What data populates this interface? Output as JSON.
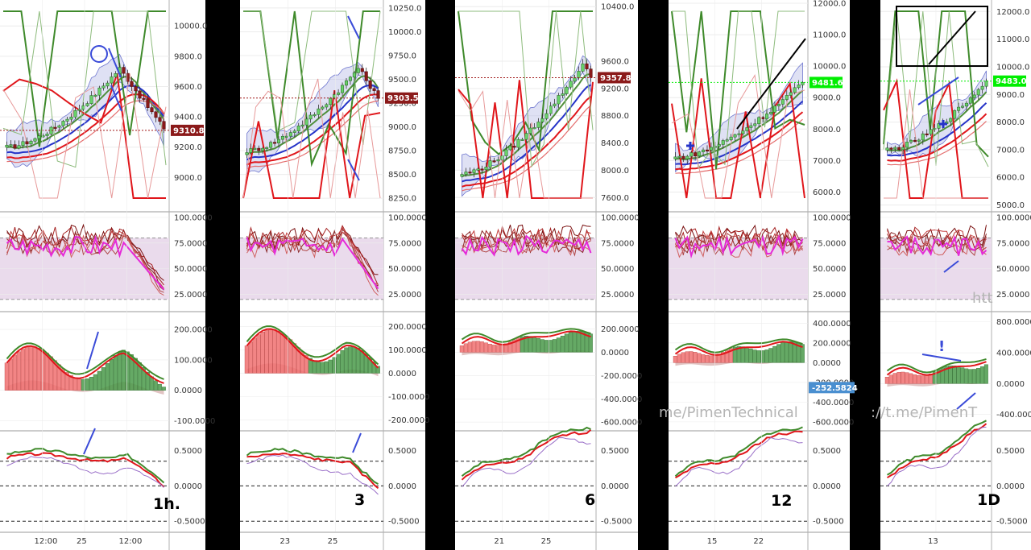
{
  "colors": {
    "background": "#000000",
    "panel": "#ffffff",
    "grid": "#ececec",
    "bull": "#6ad36a",
    "bear": "#8b1a1a",
    "hist_pos": "#4a9a4a",
    "hist_neg": "#f07070",
    "signal_red": "#e0161b",
    "signal_green": "#3f8a2b",
    "ribbon_blue": "#2533c8",
    "band_fill": "#b9bde6",
    "stoch_zone": "#eadbec",
    "stoch_line": "#e52ad8",
    "annotation": "#3a4bd8",
    "current_green": "#00ee00"
  },
  "chart_data": [
    {
      "type": "line",
      "timeframe": "1h.",
      "x_ticks": [
        "12:00",
        "25",
        "12:00"
      ],
      "price_axis": {
        "ylim": [
          8800,
          10150
        ],
        "ticks": [
          "10000.0",
          "9800.0",
          "9600.0",
          "9400.0",
          "9200.0",
          "9000.0"
        ],
        "current": "9310.8",
        "current_value": 9310.8,
        "badge_color": "#8b1a1a"
      },
      "candles": {
        "start": 9200,
        "end": 9320,
        "peak": 9720,
        "peak_frac": 0.72,
        "decline": true
      },
      "stoch": {
        "ticks": [
          "100.0000",
          "75.0000",
          "50.0000",
          "25.0000"
        ],
        "upper": 80,
        "lower": 20
      },
      "macd": {
        "ylim": [
          -120,
          240
        ],
        "ticks": [
          "200.0000",
          "100.0000",
          "0.0000",
          "-100.0000"
        ]
      },
      "osc": {
        "ylim": [
          -0.6,
          0.7
        ],
        "ticks": [
          "0.5000",
          "0.0000",
          "-0.5000"
        ],
        "levels": [
          0.35,
          0,
          -0.5
        ]
      }
    },
    {
      "type": "line",
      "timeframe": "3",
      "x_ticks": [
        "23",
        "25"
      ],
      "price_axis": {
        "ylim": [
          8150,
          10300
        ],
        "ticks": [
          "10250.0",
          "10000.0",
          "9750.0",
          "9500.0",
          "9250.0",
          "9000.0",
          "8750.0",
          "8500.0",
          "8250.0"
        ],
        "current": "9303.5",
        "current_value": 9303.5,
        "badge_color": "#8b1a1a"
      },
      "candles": {
        "start": 8750,
        "end": 9300,
        "peak": 9620,
        "peak_frac": 0.85,
        "decline": true
      },
      "stoch": {
        "ticks": [
          "100.0000",
          "75.0000",
          "50.0000",
          "25.0000"
        ],
        "upper": 80,
        "lower": 20
      },
      "macd": {
        "ylim": [
          -230,
          240
        ],
        "ticks": [
          "200.0000",
          "100.0000",
          "0.0000",
          "-100.0000",
          "-200.0000"
        ]
      },
      "osc": {
        "ylim": [
          -0.6,
          0.7
        ],
        "ticks": [
          "0.5000",
          "0.0000",
          "-0.5000"
        ],
        "levels": [
          0.35,
          0,
          -0.5
        ]
      }
    },
    {
      "type": "line",
      "timeframe": "6",
      "x_ticks": [
        "21",
        "25"
      ],
      "price_axis": {
        "ylim": [
          7450,
          10450
        ],
        "ticks": [
          "10400.0",
          "9600.0",
          "9200.0",
          "8800.0",
          "8400.0",
          "8000.0",
          "7600.0"
        ],
        "current": "9357.8",
        "current_value": 9357.8,
        "badge_color": "#8b1a1a"
      },
      "candles": {
        "start": 7950,
        "end": 9360,
        "peak": 9550,
        "peak_frac": 0.93,
        "decline": false
      },
      "stoch": {
        "ticks": [
          "100.0000",
          "75.0000",
          "50.0000",
          "25.0000"
        ],
        "upper": 80,
        "lower": 20
      },
      "macd": {
        "ylim": [
          -640,
          300
        ],
        "ticks": [
          "200.0000",
          "0.0000",
          "-200.0000",
          "-400.0000",
          "-600.0000"
        ]
      },
      "osc": {
        "ylim": [
          -0.6,
          0.7
        ],
        "ticks": [
          "0.5000",
          "0.0000",
          "-0.5000"
        ],
        "levels": [
          0.35,
          0,
          -0.5
        ]
      }
    },
    {
      "type": "line",
      "timeframe": "12",
      "x_ticks": [
        "15",
        "22"
      ],
      "price_axis": {
        "ylim": [
          5500,
          12000
        ],
        "ticks": [
          "12000.0",
          "11000.0",
          "10000.0",
          "9000.0",
          "8000.0",
          "7000.0",
          "6000.0"
        ],
        "current": "9481.6",
        "current_value": 9481.6,
        "badge_color": "#00ee00"
      },
      "candles": {
        "start": 7100,
        "end": 9480,
        "peak": 9480,
        "peak_frac": 1.0,
        "decline": false
      },
      "stoch": {
        "ticks": [
          "100.0000",
          "75.0000",
          "50.0000",
          "25.0000"
        ],
        "upper": 80,
        "lower": 20
      },
      "macd": {
        "ylim": [
          -650,
          460
        ],
        "ticks": [
          "400.0000",
          "200.0000",
          "0.0000",
          "-200.0000",
          "-400.0000",
          "-600.0000"
        ],
        "current": "-252.5824",
        "current_value": -252.58
      },
      "osc": {
        "ylim": [
          -0.6,
          0.7
        ],
        "ticks": [
          "0.5000",
          "0.0000",
          "-0.5000"
        ],
        "levels": [
          0.35,
          0,
          -0.5
        ]
      },
      "watermark": "me/PimenTechnical"
    },
    {
      "type": "line",
      "timeframe": "1D",
      "x_ticks": [
        "13"
      ],
      "price_axis": {
        "ylim": [
          4900,
          12300
        ],
        "ticks": [
          "12000.0",
          "11000.0",
          "10000.0",
          "9000.0",
          "8000.0",
          "7000.0",
          "6000.0",
          "5000.0"
        ],
        "current": "9483.0",
        "current_value": 9483.0,
        "badge_color": "#00ee00"
      },
      "candles": {
        "start": 7000,
        "end": 9480,
        "peak": 9480,
        "peak_frac": 1.0,
        "decline": false
      },
      "stoch": {
        "ticks": [
          "100.0000",
          "75.0000",
          "50.0000",
          "25.0000"
        ],
        "upper": 80,
        "lower": 20
      },
      "macd": {
        "ylim": [
          -560,
          860
        ],
        "ticks": [
          "800.0000",
          "400.0000",
          "0.0000",
          "-400.0000"
        ]
      },
      "osc": {
        "ylim": [
          -0.6,
          0.7
        ],
        "ticks": [
          "0.5000",
          "0.0000",
          "-0.5000"
        ],
        "levels": [
          0.35,
          0,
          -0.5
        ]
      },
      "watermark": "://t.me/PimenT",
      "partial_text": "htt",
      "annotation_mark": "!"
    }
  ]
}
